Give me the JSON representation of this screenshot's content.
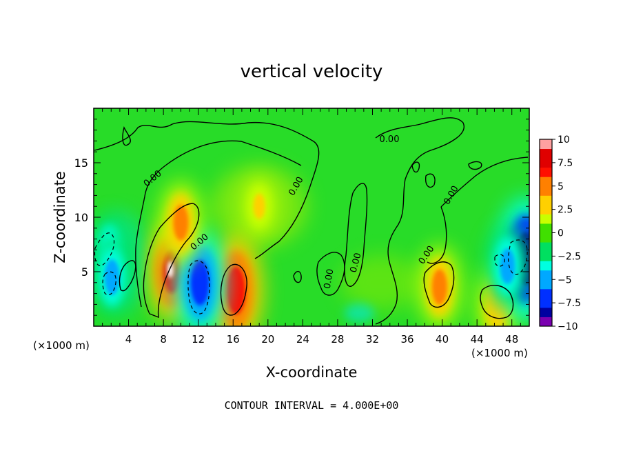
{
  "chart_data": {
    "type": "heatmap",
    "title": "vertical velocity",
    "xlabel": "X-coordinate",
    "ylabel": "Z-coordinate",
    "x_unit_left": "(×1000 m)",
    "x_unit_right": "(×1000 m)",
    "footer": "CONTOUR INTERVAL = 4.000E+00",
    "contour_label": "0.00",
    "xlim": [
      0,
      50
    ],
    "ylim": [
      0,
      20
    ],
    "x_ticks": [
      {
        "value": 4,
        "label": "4"
      },
      {
        "value": 8,
        "label": "8"
      },
      {
        "value": 12,
        "label": "12"
      },
      {
        "value": 16,
        "label": "16"
      },
      {
        "value": 20,
        "label": "20"
      },
      {
        "value": 24,
        "label": "24"
      },
      {
        "value": 28,
        "label": "28"
      },
      {
        "value": 32,
        "label": "32"
      },
      {
        "value": 36,
        "label": "36"
      },
      {
        "value": 40,
        "label": "40"
      },
      {
        "value": 44,
        "label": "44"
      },
      {
        "value": 48,
        "label": "48"
      }
    ],
    "y_ticks": [
      {
        "value": 5,
        "label": "5"
      },
      {
        "value": 10,
        "label": "10"
      },
      {
        "value": 15,
        "label": "15"
      }
    ],
    "colorbar": {
      "range": [
        -10,
        10
      ],
      "ticks": [
        {
          "value": 10,
          "label": "10"
        },
        {
          "value": 7.5,
          "label": "7.5"
        },
        {
          "value": 5,
          "label": "5"
        },
        {
          "value": 2.5,
          "label": "2.5"
        },
        {
          "value": 0,
          "label": "0"
        },
        {
          "value": -2.5,
          "label": "−2.5"
        },
        {
          "value": -5,
          "label": "−5"
        },
        {
          "value": -7.5,
          "label": "−7.5"
        },
        {
          "value": -10,
          "label": "−10"
        }
      ],
      "stops": [
        "#7a00b0",
        "#0000a0",
        "#0030ff",
        "#00a8ff",
        "#00ffe0",
        "#00e060",
        "#40e000",
        "#c8ff00",
        "#ffd000",
        "#ff8000",
        "#ff1000",
        "#e00000",
        "#ffa0a0"
      ]
    },
    "features": [
      {
        "x": 9.0,
        "z": 5.0,
        "w": 6.0,
        "kind": "updraft core"
      },
      {
        "x": 16.3,
        "z": 3.3,
        "w": 7.0,
        "kind": "updraft"
      },
      {
        "x": 12.2,
        "z": 4.0,
        "w": -6.5,
        "kind": "downdraft"
      },
      {
        "x": 1.8,
        "z": 7.0,
        "w": -3.5,
        "kind": "downdraft"
      },
      {
        "x": 2.1,
        "z": 4.5,
        "w": -4.5,
        "kind": "downdraft"
      },
      {
        "x": 39.7,
        "z": 3.6,
        "w": 4.5,
        "kind": "updraft"
      },
      {
        "x": 46.3,
        "z": 2.0,
        "w": 4.0,
        "kind": "updraft"
      },
      {
        "x": 49.6,
        "z": 6.2,
        "w": -8.0,
        "kind": "downdraft"
      },
      {
        "x": 47.5,
        "z": 5.5,
        "w": -4.5,
        "kind": "downdraft"
      },
      {
        "x": 10.0,
        "z": 9.5,
        "w": 4.5,
        "kind": "updraft"
      },
      {
        "x": 19.0,
        "z": 11.0,
        "w": 2.5,
        "kind": "weak updraft"
      }
    ]
  }
}
